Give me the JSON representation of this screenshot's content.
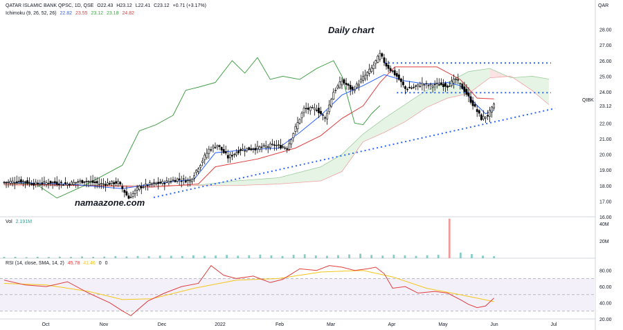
{
  "header": {
    "symbol_line": "QATAR ISLAMIC BANK QPSC, 1D, QSE",
    "ohlc": {
      "o": "O22.43",
      "h": "H23.12",
      "l": "L22.41",
      "c": "C23.12",
      "chg": "+0.71 (+3.17%)"
    },
    "currency": "QAR",
    "ichimoku_label": "Ichimoku (9, 26, 52, 26)",
    "ichimoku_values": [
      "22.82",
      "23.55",
      "23.12",
      "23.18",
      "24.82"
    ],
    "ichimoku_colors": [
      "#2962ff",
      "#e03c3c",
      "#43a047",
      "#43a047",
      "#e03c3c"
    ]
  },
  "annotations": {
    "title": "Daily chart",
    "watermark": "namaazone.com",
    "last_price_tag": "QIBK"
  },
  "volume": {
    "label": "Vol",
    "value": "2.191M"
  },
  "rsi": {
    "label": "RSI (14, close, SMA, 14, 2)",
    "values": [
      "45.78",
      "41.46",
      "0",
      "0"
    ],
    "value_colors": [
      "#e03c3c",
      "#f5c518",
      "#131722",
      "#131722"
    ]
  },
  "colors": {
    "candle": "#000000",
    "tenkan": "#2962ff",
    "kijun": "#e03c3c",
    "chikou": "#43a047",
    "cloud_bull": "#e6f4e6",
    "cloud_bear": "#fce3e3",
    "trendline": "#2962ff",
    "rsi": "#e03c3c",
    "rsi_ma": "#f5c518",
    "volume": "#26a69a",
    "volume_spike": "#ef9a9a"
  },
  "chart_data": [
    {
      "type": "candlestick",
      "title": "",
      "ylim": [
        16.0,
        29.0
      ],
      "price_ticks": [
        "28.00",
        "27.00",
        "26.00",
        "25.00",
        "24.00",
        "23.12",
        "22.00",
        "21.00",
        "20.00",
        "19.00",
        "18.00",
        "17.00",
        "16.00"
      ],
      "x_ticks": [
        "Oct",
        "Nov",
        "Dec",
        "2022",
        "Feb",
        "Mar",
        "Apr",
        "May",
        "Jun",
        "Jul"
      ],
      "close_series": [
        [
          0,
          18.2
        ],
        [
          8,
          18.3
        ],
        [
          15,
          18.1
        ],
        [
          22,
          18.2
        ],
        [
          30,
          18.1
        ],
        [
          38,
          18.3
        ],
        [
          46,
          18.1
        ],
        [
          54,
          18.2
        ],
        [
          59,
          17.2
        ],
        [
          64,
          17.9
        ],
        [
          70,
          18.1
        ],
        [
          76,
          18.2
        ],
        [
          82,
          18.4
        ],
        [
          88,
          18.3
        ],
        [
          93,
          19.4
        ],
        [
          97,
          20.3
        ],
        [
          101,
          20.6
        ],
        [
          106,
          19.8
        ],
        [
          112,
          20.3
        ],
        [
          120,
          20.4
        ],
        [
          128,
          20.6
        ],
        [
          134,
          20.4
        ],
        [
          138,
          21.7
        ],
        [
          142,
          22.9
        ],
        [
          148,
          22.9
        ],
        [
          152,
          22.3
        ],
        [
          156,
          24.0
        ],
        [
          160,
          24.7
        ],
        [
          165,
          24.1
        ],
        [
          170,
          24.9
        ],
        [
          174,
          25.5
        ],
        [
          178,
          26.4
        ],
        [
          181,
          25.7
        ],
        [
          186,
          25.0
        ],
        [
          190,
          24.2
        ],
        [
          194,
          24.3
        ],
        [
          198,
          24.5
        ],
        [
          202,
          24.4
        ],
        [
          206,
          24.5
        ],
        [
          210,
          24.4
        ],
        [
          214,
          24.8
        ],
        [
          218,
          24.1
        ],
        [
          222,
          23.2
        ],
        [
          226,
          22.3
        ],
        [
          229,
          22.5
        ],
        [
          232,
          23.12
        ]
      ],
      "resistance_level": 25.85,
      "support_level": 23.95,
      "trendline": {
        "from": [
          0,
          17.1
        ],
        "to": [
          205,
          22.7
        ]
      },
      "tenkan": [
        [
          0,
          18.2
        ],
        [
          30,
          18.1
        ],
        [
          56,
          17.8
        ],
        [
          70,
          18.1
        ],
        [
          90,
          18.4
        ],
        [
          100,
          20.1
        ],
        [
          115,
          20.3
        ],
        [
          130,
          20.4
        ],
        [
          140,
          21.4
        ],
        [
          150,
          22.5
        ],
        [
          160,
          23.8
        ],
        [
          170,
          24.4
        ],
        [
          180,
          25.1
        ],
        [
          190,
          24.7
        ],
        [
          200,
          24.5
        ],
        [
          210,
          24.6
        ],
        [
          216,
          24.4
        ],
        [
          222,
          23.4
        ],
        [
          228,
          22.6
        ],
        [
          232,
          22.82
        ]
      ],
      "kijun": [
        [
          0,
          18.1
        ],
        [
          40,
          18.0
        ],
        [
          70,
          17.9
        ],
        [
          92,
          18.1
        ],
        [
          100,
          19.2
        ],
        [
          120,
          19.7
        ],
        [
          138,
          20.4
        ],
        [
          150,
          21.2
        ],
        [
          160,
          22.3
        ],
        [
          170,
          23.1
        ],
        [
          178,
          24.6
        ],
        [
          185,
          25.6
        ],
        [
          205,
          25.6
        ],
        [
          216,
          24.8
        ],
        [
          224,
          23.6
        ],
        [
          232,
          23.55
        ]
      ],
      "chikou": [
        [
          0,
          18.2
        ],
        [
          15,
          18.1
        ],
        [
          25,
          17.2
        ],
        [
          38,
          18.0
        ],
        [
          56,
          19.3
        ],
        [
          64,
          21.5
        ],
        [
          72,
          21.9
        ],
        [
          80,
          22.5
        ],
        [
          86,
          24.1
        ],
        [
          92,
          24.3
        ],
        [
          100,
          24.6
        ],
        [
          108,
          26.0
        ],
        [
          114,
          25.2
        ],
        [
          120,
          26.2
        ],
        [
          126,
          24.8
        ],
        [
          132,
          25.0
        ],
        [
          140,
          24.8
        ],
        [
          148,
          25.5
        ],
        [
          156,
          26.0
        ],
        [
          160,
          25.0
        ],
        [
          166,
          22.0
        ],
        [
          170,
          21.9
        ],
        [
          174,
          22.6
        ],
        [
          178,
          23.12
        ]
      ],
      "cloud_span_a": [
        [
          0,
          18.1
        ],
        [
          60,
          18.0
        ],
        [
          90,
          18.0
        ],
        [
          110,
          18.3
        ],
        [
          130,
          18.5
        ],
        [
          150,
          19.2
        ],
        [
          160,
          20.0
        ],
        [
          170,
          21.3
        ],
        [
          180,
          22.3
        ],
        [
          190,
          23.2
        ],
        [
          200,
          24.1
        ],
        [
          210,
          24.6
        ],
        [
          220,
          25.3
        ],
        [
          230,
          25.5
        ],
        [
          240,
          24.9
        ],
        [
          250,
          25.0
        ],
        [
          258,
          24.82
        ]
      ],
      "cloud_span_b": [
        [
          0,
          18.0
        ],
        [
          60,
          18.0
        ],
        [
          90,
          18.0
        ],
        [
          110,
          18.0
        ],
        [
          130,
          18.1
        ],
        [
          150,
          18.3
        ],
        [
          160,
          18.9
        ],
        [
          170,
          20.8
        ],
        [
          180,
          21.4
        ],
        [
          190,
          22.1
        ],
        [
          200,
          23.0
        ],
        [
          210,
          23.6
        ],
        [
          220,
          23.9
        ],
        [
          230,
          24.9
        ],
        [
          240,
          25.0
        ],
        [
          250,
          24.1
        ],
        [
          258,
          23.18
        ]
      ]
    },
    {
      "type": "bar",
      "title": "",
      "ylim": [
        0,
        45
      ],
      "y_ticks": [
        "40M",
        "20M"
      ],
      "values_millions": [
        1.5,
        1.6,
        1.2,
        1.7,
        1.4,
        1.8,
        1.5,
        2.0,
        1.6,
        1.9,
        2.4,
        2.1,
        2.6,
        2.3,
        3.0,
        2.8,
        2.5,
        3.4,
        2.7,
        3.1,
        3.8,
        2.9,
        3.5,
        4.2,
        3.3,
        2.6,
        3.9,
        4.6,
        3.2,
        2.8,
        3.6,
        4.4,
        5.2,
        3.8,
        3.0,
        4.1,
        3.4,
        2.7,
        3.5,
        4.0,
        46.0,
        6.5,
        4.8,
        3.0,
        2.2
      ]
    },
    {
      "type": "line",
      "title": "",
      "ylim": [
        20,
        90
      ],
      "y_ticks": [
        "80.00",
        "60.00",
        "40.00",
        "20.00"
      ],
      "levels": [
        70,
        50,
        30
      ],
      "rsi": [
        [
          0,
          68
        ],
        [
          10,
          62
        ],
        [
          20,
          60
        ],
        [
          30,
          66
        ],
        [
          40,
          52
        ],
        [
          50,
          40
        ],
        [
          56,
          30
        ],
        [
          60,
          24
        ],
        [
          68,
          42
        ],
        [
          76,
          52
        ],
        [
          84,
          60
        ],
        [
          92,
          64
        ],
        [
          98,
          86
        ],
        [
          104,
          74
        ],
        [
          110,
          70
        ],
        [
          118,
          73
        ],
        [
          126,
          65
        ],
        [
          132,
          69
        ],
        [
          140,
          82
        ],
        [
          148,
          80
        ],
        [
          154,
          86
        ],
        [
          160,
          84
        ],
        [
          166,
          80
        ],
        [
          172,
          82
        ],
        [
          176,
          84
        ],
        [
          180,
          76
        ],
        [
          184,
          58
        ],
        [
          190,
          60
        ],
        [
          196,
          52
        ],
        [
          204,
          54
        ],
        [
          210,
          52
        ],
        [
          216,
          44
        ],
        [
          220,
          38
        ],
        [
          224,
          34
        ],
        [
          228,
          36
        ],
        [
          232,
          45.78
        ]
      ],
      "rsi_ma": [
        [
          0,
          64
        ],
        [
          20,
          62
        ],
        [
          40,
          54
        ],
        [
          56,
          44
        ],
        [
          70,
          45
        ],
        [
          90,
          58
        ],
        [
          110,
          68
        ],
        [
          130,
          70
        ],
        [
          150,
          78
        ],
        [
          170,
          80
        ],
        [
          184,
          72
        ],
        [
          200,
          58
        ],
        [
          216,
          50
        ],
        [
          232,
          41.46
        ]
      ]
    }
  ]
}
